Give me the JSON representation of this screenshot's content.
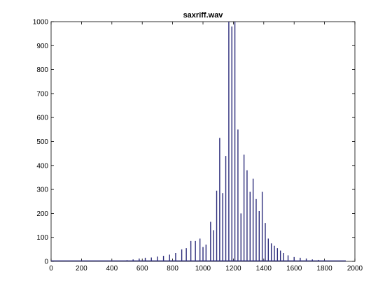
{
  "chart_data": {
    "type": "line",
    "title": "saxriff.wav",
    "xlabel": "",
    "ylabel": "",
    "xlim": [
      0,
      2000
    ],
    "ylim": [
      0,
      1000
    ],
    "xticks": [
      0,
      200,
      400,
      600,
      800,
      1000,
      1200,
      1400,
      1600,
      1800,
      2000
    ],
    "yticks": [
      0,
      100,
      200,
      300,
      400,
      500,
      600,
      700,
      800,
      900,
      1000
    ],
    "xtick_labels": [
      "0",
      "200",
      "400",
      "600",
      "800",
      "1000",
      "1200",
      "1400",
      "1600",
      "1800",
      "2000"
    ],
    "ytick_labels": [
      "0",
      "100",
      "200",
      "300",
      "400",
      "500",
      "600",
      "700",
      "800",
      "900",
      "1000"
    ],
    "grid": false,
    "legend": "none",
    "line_color": "#2b2b7a",
    "series": [
      {
        "x": [
          0,
          200,
          400,
          500,
          540,
          580,
          620,
          660,
          700,
          740,
          780,
          820,
          860,
          890,
          920,
          950,
          980,
          1000,
          1020,
          1050,
          1070,
          1090,
          1110,
          1130,
          1150,
          1170,
          1190,
          1210,
          1230,
          1250,
          1270,
          1290,
          1310,
          1330,
          1350,
          1370,
          1390,
          1410,
          1430,
          1450,
          1470,
          1490,
          1510,
          1530,
          1560,
          1600,
          1640,
          1680,
          1720,
          1760,
          1800,
          1850,
          1900,
          1940
        ],
        "y": [
          2,
          2,
          3,
          5,
          8,
          12,
          15,
          16,
          20,
          23,
          28,
          35,
          50,
          55,
          85,
          85,
          95,
          60,
          70,
          165,
          130,
          295,
          515,
          285,
          440,
          1000,
          980,
          1000,
          550,
          200,
          445,
          380,
          290,
          345,
          260,
          210,
          290,
          160,
          95,
          75,
          65,
          55,
          45,
          35,
          25,
          18,
          15,
          12,
          8,
          6,
          4,
          3,
          2,
          1
        ]
      }
    ]
  }
}
